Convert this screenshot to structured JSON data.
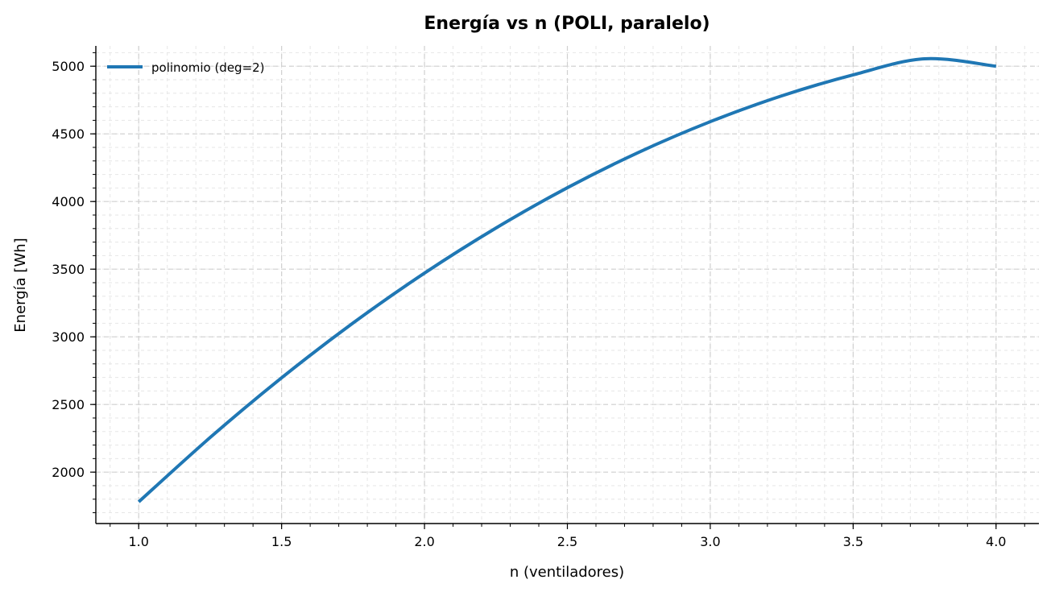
{
  "chart_data": {
    "type": "line",
    "title": "Energía vs n (POLI, paralelo)",
    "xlabel": "n (ventiladores)",
    "ylabel": "Energía [Wh]",
    "xlim": [
      0.85,
      4.15
    ],
    "ylim": [
      1620,
      5150
    ],
    "xticks": [
      1.0,
      1.5,
      2.0,
      2.5,
      3.0,
      3.5,
      4.0
    ],
    "xtick_labels": [
      "1.0",
      "1.5",
      "2.0",
      "2.5",
      "3.0",
      "3.5",
      "4.0"
    ],
    "yticks": [
      2000,
      2500,
      3000,
      3500,
      4000,
      4500,
      5000
    ],
    "ytick_labels": [
      "2000",
      "2500",
      "3000",
      "3500",
      "4000",
      "4500",
      "5000"
    ],
    "grid": true,
    "legend_position": "top-left",
    "series": [
      {
        "name": "polinomio (deg=2)",
        "color": "#1f77b4",
        "x": [
          1.0,
          1.25,
          1.5,
          1.75,
          2.0,
          2.25,
          2.5,
          2.75,
          3.0,
          3.25,
          3.5,
          3.75,
          4.0
        ],
        "y": [
          1780,
          2256,
          2697,
          3102,
          3471,
          3804,
          4102,
          4364,
          4590,
          4781,
          4936,
          5055,
          5000
        ]
      }
    ]
  }
}
